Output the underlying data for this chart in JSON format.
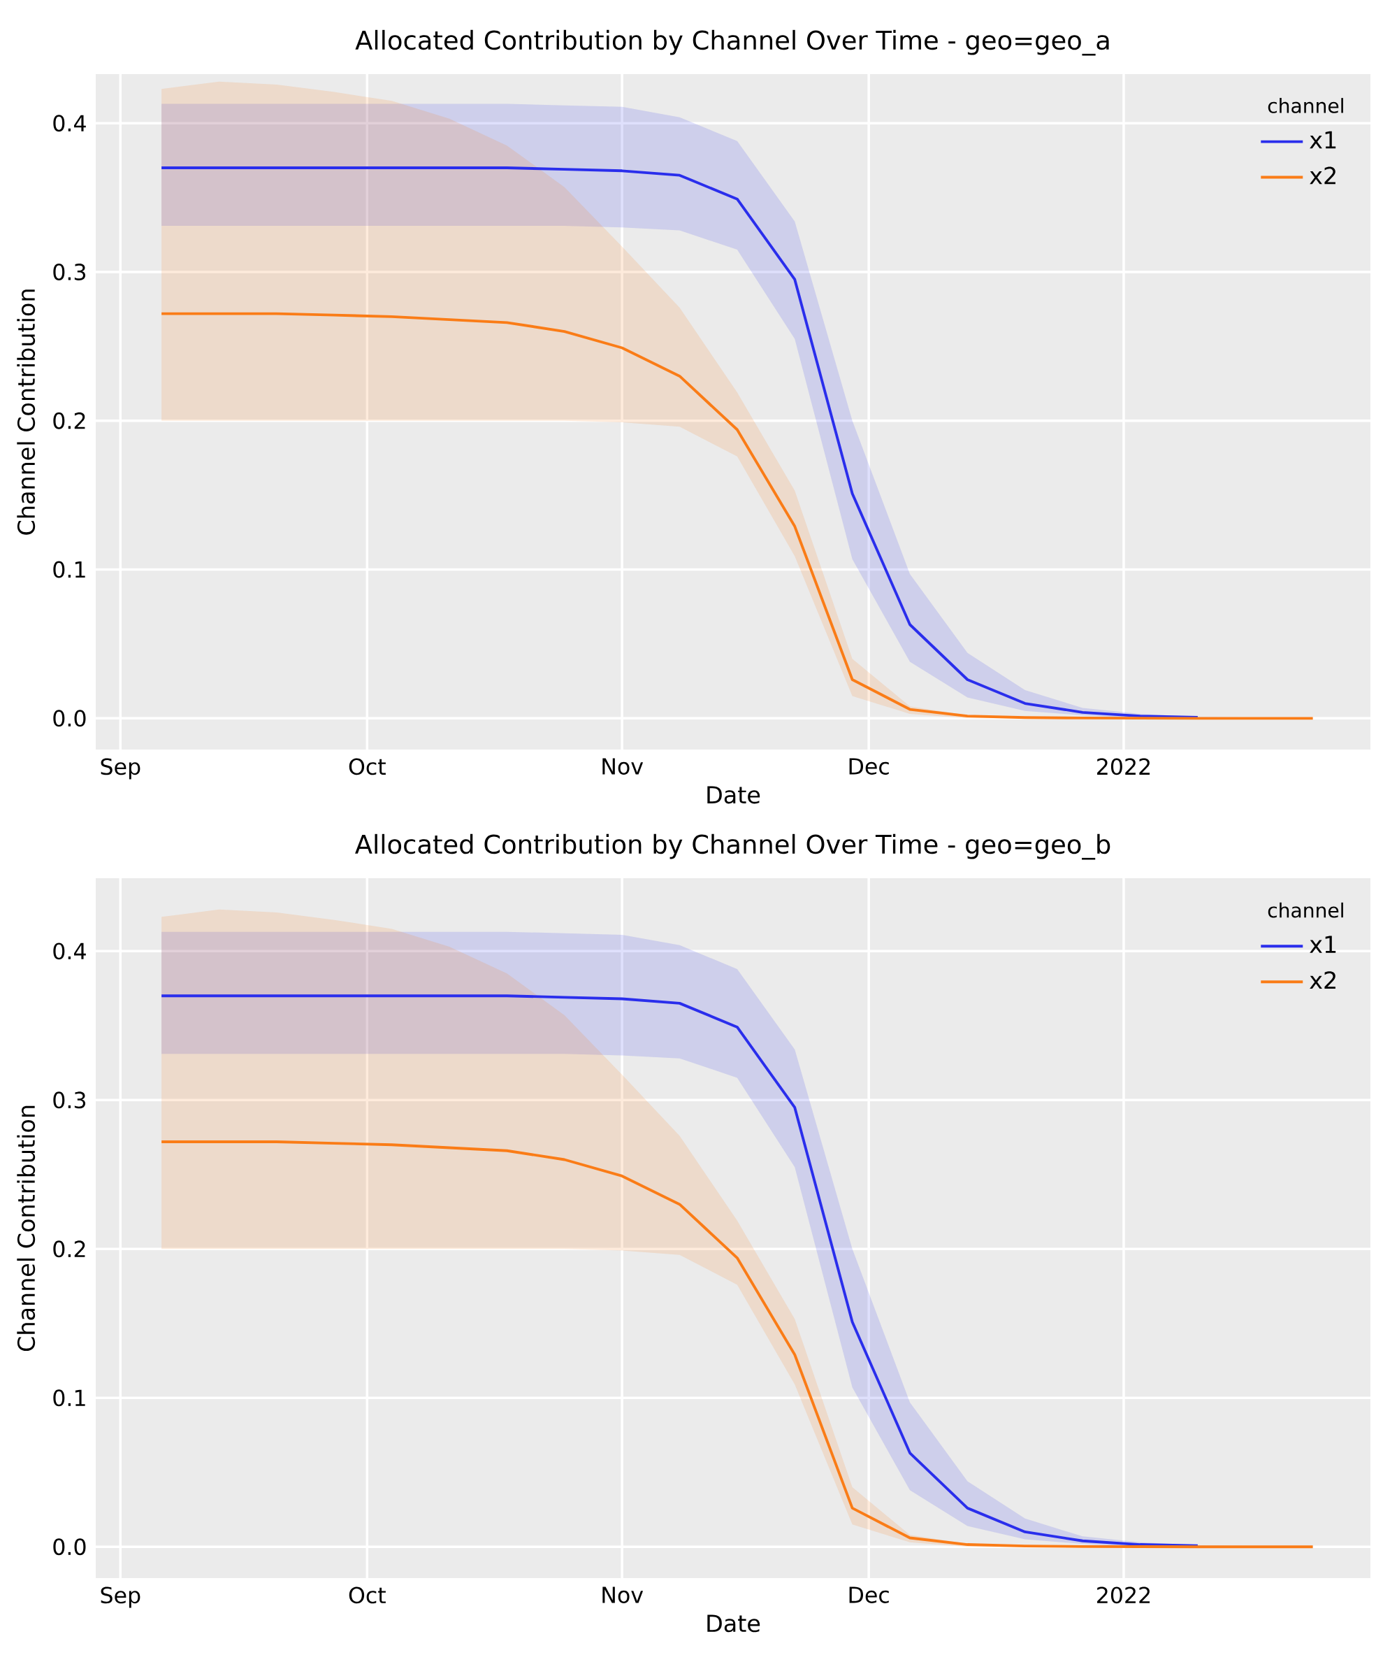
{
  "chart_data": [
    {
      "type": "line",
      "title": "Allocated Contribution by Channel Over Time - geo=geo_a",
      "xlabel": "Date",
      "ylabel": "Channel Contribution",
      "legend_title": "channel",
      "legend": "top right",
      "grid": true,
      "marker": "none",
      "line_style": "solid",
      "x": [
        "2021-09-06",
        "2021-09-13",
        "2021-09-20",
        "2021-09-27",
        "2021-10-04",
        "2021-10-11",
        "2021-10-18",
        "2021-10-25",
        "2021-11-01",
        "2021-11-08",
        "2021-11-15",
        "2021-11-22",
        "2021-11-29",
        "2021-12-06",
        "2021-12-13",
        "2021-12-20",
        "2021-12-27",
        "2022-01-03",
        "2022-01-10",
        "2022-01-17",
        "2022-01-24"
      ],
      "xlim": [
        "2021-08-29",
        "2022-01-31"
      ],
      "ylim": [
        -0.021,
        0.433
      ],
      "xticks": [
        {
          "value": "2021-09-01",
          "label": "Sep"
        },
        {
          "value": "2021-10-01",
          "label": "Oct"
        },
        {
          "value": "2021-11-01",
          "label": "Nov"
        },
        {
          "value": "2021-12-01",
          "label": "Dec"
        },
        {
          "value": "2022-01-01",
          "label": "2022"
        }
      ],
      "yticks": [
        {
          "value": 0,
          "label": "0.0"
        },
        {
          "value": 0.1,
          "label": "0.1"
        },
        {
          "value": 0.2,
          "label": "0.2"
        },
        {
          "value": 0.3,
          "label": "0.3"
        },
        {
          "value": 0.4,
          "label": "0.4"
        }
      ],
      "series": [
        {
          "name": "x1",
          "color": "#2a2eec",
          "values": [
            0.37,
            0.37,
            0.37,
            0.37,
            0.37,
            0.37,
            0.37,
            0.369,
            0.368,
            0.365,
            0.349,
            0.295,
            0.151,
            0.063,
            0.026,
            0.01,
            0.004,
            0.0015,
            0.0007,
            null,
            null
          ],
          "lower": [
            0.331,
            0.331,
            0.331,
            0.331,
            0.331,
            0.331,
            0.331,
            0.331,
            0.33,
            0.328,
            0.315,
            0.255,
            0.107,
            0.038,
            0.014,
            0.005,
            0.002,
            0,
            0,
            0,
            0
          ],
          "upper": [
            0.413,
            0.413,
            0.413,
            0.413,
            0.413,
            0.413,
            0.413,
            0.412,
            0.411,
            0.404,
            0.388,
            0.334,
            0.2,
            0.097,
            0.044,
            0.019,
            0.007,
            0.003,
            0.001,
            0.0005,
            0.0002
          ]
        },
        {
          "name": "x2",
          "color": "#fa7c17",
          "values": [
            0.272,
            0.272,
            0.272,
            0.271,
            0.27,
            0.268,
            0.266,
            0.26,
            0.249,
            0.23,
            0.194,
            0.129,
            0.026,
            0.006,
            0.0015,
            0.0005,
            0.0002,
            0.0001,
            0,
            0,
            0
          ],
          "lower": [
            0.2,
            0.2,
            0.2,
            0.2,
            0.2,
            0.2,
            0.2,
            0.2,
            0.199,
            0.196,
            0.176,
            0.109,
            0.015,
            0.003,
            0,
            0,
            0,
            0,
            0,
            0,
            0
          ],
          "upper": [
            0.423,
            0.428,
            0.426,
            0.421,
            0.415,
            0.403,
            0.385,
            0.357,
            0.317,
            0.276,
            0.219,
            0.153,
            0.04,
            0.008,
            0.002,
            0,
            0,
            0,
            0,
            0,
            0
          ]
        }
      ]
    },
    {
      "type": "line",
      "title": "Allocated Contribution by Channel Over Time - geo=geo_b",
      "xlabel": "Date",
      "ylabel": "Channel Contribution",
      "legend_title": "channel",
      "legend": "top right",
      "grid": true,
      "marker": "none",
      "line_style": "solid",
      "x": [
        "2021-09-06",
        "2021-09-13",
        "2021-09-20",
        "2021-09-27",
        "2021-10-04",
        "2021-10-11",
        "2021-10-18",
        "2021-10-25",
        "2021-11-01",
        "2021-11-08",
        "2021-11-15",
        "2021-11-22",
        "2021-11-29",
        "2021-12-06",
        "2021-12-13",
        "2021-12-20",
        "2021-12-27",
        "2022-01-03",
        "2022-01-10",
        "2022-01-17",
        "2022-01-24"
      ],
      "xlim": [
        "2021-08-29",
        "2022-01-31"
      ],
      "ylim": [
        -0.021,
        0.449
      ],
      "xticks": [
        {
          "value": "2021-09-01",
          "label": "Sep"
        },
        {
          "value": "2021-10-01",
          "label": "Oct"
        },
        {
          "value": "2021-11-01",
          "label": "Nov"
        },
        {
          "value": "2021-12-01",
          "label": "Dec"
        },
        {
          "value": "2022-01-01",
          "label": "2022"
        }
      ],
      "yticks": [
        {
          "value": 0,
          "label": "0.0"
        },
        {
          "value": 0.1,
          "label": "0.1"
        },
        {
          "value": 0.2,
          "label": "0.2"
        },
        {
          "value": 0.3,
          "label": "0.3"
        },
        {
          "value": 0.4,
          "label": "0.4"
        }
      ],
      "series": [
        {
          "name": "x1",
          "color": "#2a2eec",
          "values": [
            0.37,
            0.37,
            0.37,
            0.37,
            0.37,
            0.37,
            0.37,
            0.369,
            0.368,
            0.365,
            0.349,
            0.295,
            0.151,
            0.063,
            0.026,
            0.01,
            0.004,
            0.0015,
            0.0007,
            null,
            null
          ],
          "lower": [
            0.331,
            0.331,
            0.331,
            0.331,
            0.331,
            0.331,
            0.331,
            0.331,
            0.33,
            0.328,
            0.315,
            0.255,
            0.107,
            0.038,
            0.014,
            0.005,
            0.002,
            0,
            0,
            0,
            0
          ],
          "upper": [
            0.413,
            0.413,
            0.413,
            0.413,
            0.413,
            0.413,
            0.413,
            0.412,
            0.411,
            0.404,
            0.388,
            0.334,
            0.2,
            0.097,
            0.044,
            0.019,
            0.007,
            0.003,
            0.001,
            0.0005,
            0.0002
          ]
        },
        {
          "name": "x2",
          "color": "#fa7c17",
          "values": [
            0.272,
            0.272,
            0.272,
            0.271,
            0.27,
            0.268,
            0.266,
            0.26,
            0.249,
            0.23,
            0.194,
            0.129,
            0.026,
            0.006,
            0.0015,
            0.0005,
            0.0002,
            0.0001,
            0,
            0,
            0
          ],
          "lower": [
            0.2,
            0.2,
            0.2,
            0.2,
            0.2,
            0.2,
            0.2,
            0.2,
            0.199,
            0.196,
            0.176,
            0.109,
            0.015,
            0.003,
            0,
            0,
            0,
            0,
            0,
            0,
            0
          ],
          "upper": [
            0.423,
            0.428,
            0.426,
            0.421,
            0.415,
            0.403,
            0.385,
            0.357,
            0.317,
            0.276,
            0.219,
            0.153,
            0.04,
            0.008,
            0.002,
            0,
            0,
            0,
            0,
            0,
            0
          ]
        }
      ]
    }
  ]
}
